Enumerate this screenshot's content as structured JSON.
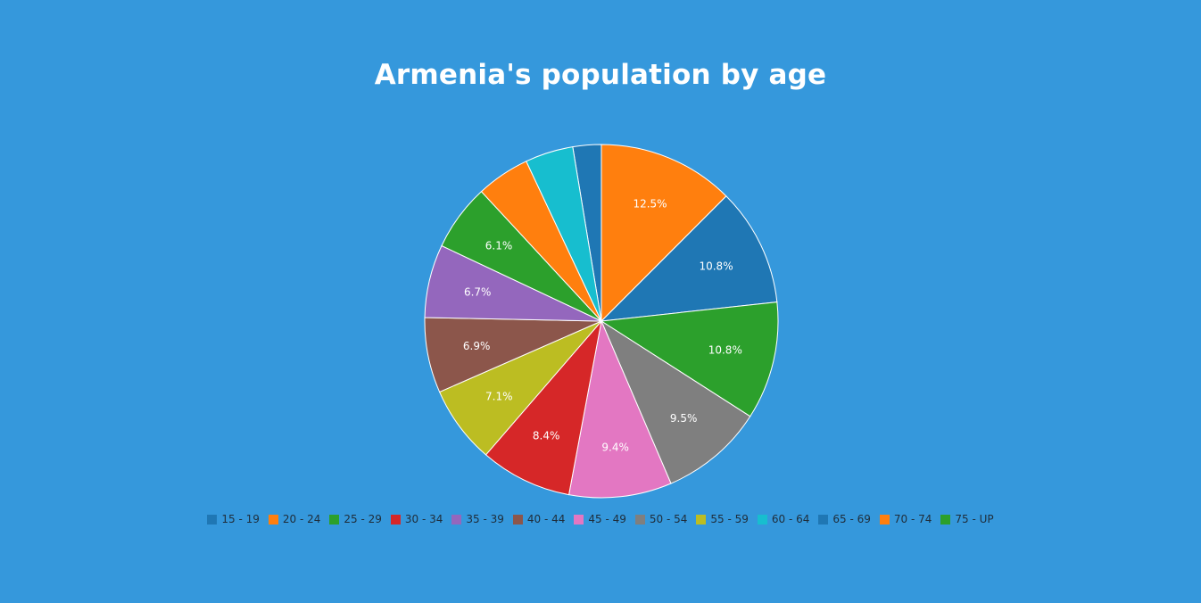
{
  "chart_data": {
    "type": "pie",
    "title": "Armenia's population by age",
    "categories": [
      "15 - 19",
      "20 - 24",
      "25 - 29",
      "30 - 34",
      "35 - 39",
      "40 - 44",
      "45 - 49",
      "50 - 54",
      "55 - 59",
      "60 - 64",
      "65 - 69",
      "70 - 74",
      "75 - UP"
    ],
    "slices": [
      {
        "label": "15 - 19",
        "value": 2.6,
        "color": "#1f77b4",
        "data_label": ""
      },
      {
        "label": "70 - 74",
        "value": 12.5,
        "color": "#ff7f0e",
        "data_label": "12.5%"
      },
      {
        "label": "65 - 69",
        "value": 10.8,
        "color": "#1f77b4",
        "data_label": "10.8%"
      },
      {
        "label": "75 - UP",
        "value": 10.8,
        "color": "#2ca02c",
        "data_label": "10.8%"
      },
      {
        "label": "50 - 54",
        "value": 9.5,
        "color": "#7f7f7f",
        "data_label": "9.5%"
      },
      {
        "label": "45 - 49",
        "value": 9.4,
        "color": "#e377c2",
        "data_label": "9.4%"
      },
      {
        "label": "30 - 34",
        "value": 8.4,
        "color": "#d62728",
        "data_label": "8.4%"
      },
      {
        "label": "55 - 59",
        "value": 7.1,
        "color": "#bcbd22",
        "data_label": "7.1%"
      },
      {
        "label": "40 - 44",
        "value": 6.9,
        "color": "#8c564b",
        "data_label": "6.9%"
      },
      {
        "label": "35 - 39",
        "value": 6.7,
        "color": "#9467bd",
        "data_label": "6.7%"
      },
      {
        "label": "25 - 29",
        "value": 6.1,
        "color": "#2ca02c",
        "data_label": "6.1%"
      },
      {
        "label": "20 - 24",
        "value": 4.9,
        "color": "#ff7f0e",
        "data_label": ""
      },
      {
        "label": "60 - 64",
        "value": 4.4,
        "color": "#17becf",
        "data_label": ""
      }
    ],
    "legend": {
      "placement": "bottom",
      "items": [
        {
          "label": "15 - 19",
          "color": "#1f77b4"
        },
        {
          "label": "20 - 24",
          "color": "#ff7f0e"
        },
        {
          "label": "25 - 29",
          "color": "#2ca02c"
        },
        {
          "label": "30 - 34",
          "color": "#d62728"
        },
        {
          "label": "35 - 39",
          "color": "#9467bd"
        },
        {
          "label": "40 - 44",
          "color": "#8c564b"
        },
        {
          "label": "45 - 49",
          "color": "#e377c2"
        },
        {
          "label": "50 - 54",
          "color": "#7f7f7f"
        },
        {
          "label": "55 - 59",
          "color": "#bcbd22"
        },
        {
          "label": "60 - 64",
          "color": "#17becf"
        },
        {
          "label": "65 - 69",
          "color": "#1f77b4"
        },
        {
          "label": "70 - 74",
          "color": "#ff7f0e"
        },
        {
          "label": "75 - UP",
          "color": "#2ca02c"
        }
      ]
    }
  },
  "colors": {
    "background": "#3598dc",
    "slice_border": "#ffffff",
    "legend_text": "#1f2d3a"
  }
}
